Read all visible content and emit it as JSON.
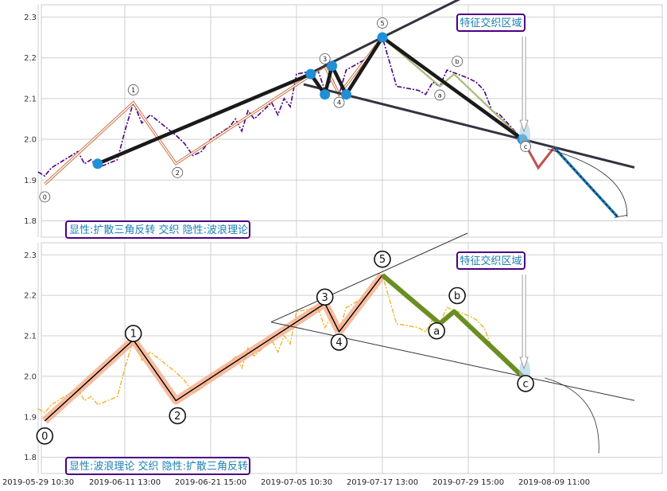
{
  "chart_data": [
    {
      "type": "line",
      "xlim": [
        "2019-05-29 10:30",
        "2019-08-23 11:00"
      ],
      "ylim": [
        1.76,
        2.33
      ],
      "yticks": [
        1.8,
        1.9,
        2.0,
        2.1,
        2.2,
        2.3
      ],
      "grid": true,
      "price_series": {
        "color": "#4b0082",
        "points": [
          [
            "2019-05-29 10:30",
            1.92
          ],
          [
            "2019-05-30 10:30",
            1.91
          ],
          [
            "2019-05-31 10:30",
            1.93
          ],
          [
            "2019-06-03 10:30",
            1.96
          ],
          [
            "2019-06-04 10:30",
            1.97
          ],
          [
            "2019-06-05 10:30",
            1.94
          ],
          [
            "2019-06-06 10:30",
            1.95
          ],
          [
            "2019-06-07 10:30",
            1.93
          ],
          [
            "2019-06-10 10:30",
            1.95
          ],
          [
            "2019-06-11 13:00",
            2.02
          ],
          [
            "2019-06-12 13:00",
            2.09
          ],
          [
            "2019-06-13 13:00",
            2.04
          ],
          [
            "2019-06-14 13:00",
            2.06
          ],
          [
            "2019-06-17 13:00",
            2.01
          ],
          [
            "2019-06-18 13:00",
            1.99
          ],
          [
            "2019-06-19 13:00",
            1.96
          ],
          [
            "2019-06-20 13:00",
            1.97
          ],
          [
            "2019-06-21 15:00",
            2.0
          ],
          [
            "2019-06-24 15:00",
            2.03
          ],
          [
            "2019-06-25 15:00",
            2.05
          ],
          [
            "2019-06-26 15:00",
            2.02
          ],
          [
            "2019-06-27 15:00",
            2.07
          ],
          [
            "2019-06-28 15:00",
            2.05
          ],
          [
            "2019-07-01 10:30",
            2.09
          ],
          [
            "2019-07-02 10:30",
            2.06
          ],
          [
            "2019-07-03 10:30",
            2.1
          ],
          [
            "2019-07-04 10:30",
            2.08
          ],
          [
            "2019-07-05 10:30",
            2.16
          ],
          [
            "2019-07-08 10:30",
            2.17
          ],
          [
            "2019-07-09 10:30",
            2.12
          ],
          [
            "2019-07-10 10:30",
            2.15
          ],
          [
            "2019-07-11 10:30",
            2.11
          ],
          [
            "2019-07-12 10:30",
            2.17
          ],
          [
            "2019-07-15 13:00",
            2.2
          ],
          [
            "2019-07-16 13:00",
            2.23
          ],
          [
            "2019-07-17 13:00",
            2.25
          ],
          [
            "2019-07-18 13:00",
            2.19
          ],
          [
            "2019-07-19 13:00",
            2.13
          ],
          [
            "2019-07-22 15:00",
            2.12
          ],
          [
            "2019-07-23 15:00",
            2.11
          ],
          [
            "2019-07-24 15:00",
            2.14
          ],
          [
            "2019-07-25 15:00",
            2.13
          ],
          [
            "2019-07-26 15:00",
            2.17
          ],
          [
            "2019-07-29 15:00",
            2.15
          ],
          [
            "2019-07-30 15:00",
            2.14
          ],
          [
            "2019-07-31 15:00",
            2.12
          ],
          [
            "2019-08-01 15:00",
            2.07
          ],
          [
            "2019-08-02 15:00",
            2.06
          ],
          [
            "2019-08-05 11:00",
            2.0
          ]
        ]
      },
      "wave_points": [
        {
          "label": "0",
          "x": "2019-05-30 10:30",
          "y": 1.89
        },
        {
          "label": "1",
          "x": "2019-06-12 13:00",
          "y": 2.09
        },
        {
          "label": "2",
          "x": "2019-06-17 13:00",
          "y": 1.94
        },
        {
          "label": "3",
          "x": "2019-07-09 10:30",
          "y": 2.18
        },
        {
          "label": "4",
          "x": "2019-07-11 10:30",
          "y": 2.11
        },
        {
          "label": "5",
          "x": "2019-07-17 13:00",
          "y": 2.25
        },
        {
          "label": "a",
          "x": "2019-07-25 15:00",
          "y": 2.13
        },
        {
          "label": "b",
          "x": "2019-07-27 15:00",
          "y": 2.16
        },
        {
          "label": "c",
          "x": "2019-08-05 11:00",
          "y": 2.0
        }
      ],
      "triangle_pivots": [
        {
          "x": "2019-06-07 10:30",
          "y": 1.94
        },
        {
          "x": "2019-07-07 10:30",
          "y": 2.16
        },
        {
          "x": "2019-07-09 10:30",
          "y": 2.11
        },
        {
          "x": "2019-07-10 10:30",
          "y": 2.18
        },
        {
          "x": "2019-07-12 10:30",
          "y": 2.11
        },
        {
          "x": "2019-07-17 13:00",
          "y": 2.25
        },
        {
          "x": "2019-08-05 11:00",
          "y": 2.0
        }
      ],
      "projection": [
        {
          "x": "2019-08-05 11:00",
          "y": 2.0
        },
        {
          "x": "2019-08-07 11:00",
          "y": 1.93
        },
        {
          "x": "2019-08-09 11:00",
          "y": 1.98
        },
        {
          "x": "2019-08-17 11:00",
          "y": 1.81
        }
      ],
      "callout": "特征交织区域",
      "caption": "显性:扩散三角反转 交织 隐性:波浪理论"
    },
    {
      "type": "line",
      "xlim": [
        "2019-05-29 10:30",
        "2019-08-23 11:00"
      ],
      "ylim": [
        1.76,
        2.33
      ],
      "yticks": [
        1.8,
        1.9,
        2.0,
        2.1,
        2.2,
        2.3
      ],
      "grid": true,
      "price_series": {
        "color": "#f0b429",
        "points": [
          [
            "2019-05-29 10:30",
            1.92
          ],
          [
            "2019-05-30 10:30",
            1.91
          ],
          [
            "2019-05-31 10:30",
            1.93
          ],
          [
            "2019-06-03 10:30",
            1.96
          ],
          [
            "2019-06-04 10:30",
            1.97
          ],
          [
            "2019-06-05 10:30",
            1.94
          ],
          [
            "2019-06-06 10:30",
            1.95
          ],
          [
            "2019-06-07 10:30",
            1.93
          ],
          [
            "2019-06-10 10:30",
            1.95
          ],
          [
            "2019-06-11 13:00",
            2.02
          ],
          [
            "2019-06-12 13:00",
            2.09
          ],
          [
            "2019-06-13 13:00",
            2.04
          ],
          [
            "2019-06-14 13:00",
            2.06
          ],
          [
            "2019-06-17 13:00",
            2.01
          ],
          [
            "2019-06-18 13:00",
            1.99
          ],
          [
            "2019-06-19 13:00",
            1.96
          ],
          [
            "2019-06-20 13:00",
            1.97
          ],
          [
            "2019-06-21 15:00",
            2.0
          ],
          [
            "2019-06-24 15:00",
            2.03
          ],
          [
            "2019-06-25 15:00",
            2.05
          ],
          [
            "2019-06-26 15:00",
            2.02
          ],
          [
            "2019-06-27 15:00",
            2.07
          ],
          [
            "2019-06-28 15:00",
            2.05
          ],
          [
            "2019-07-01 10:30",
            2.09
          ],
          [
            "2019-07-02 10:30",
            2.06
          ],
          [
            "2019-07-03 10:30",
            2.1
          ],
          [
            "2019-07-04 10:30",
            2.08
          ],
          [
            "2019-07-05 10:30",
            2.16
          ],
          [
            "2019-07-08 10:30",
            2.17
          ],
          [
            "2019-07-09 10:30",
            2.12
          ],
          [
            "2019-07-10 10:30",
            2.15
          ],
          [
            "2019-07-11 10:30",
            2.11
          ],
          [
            "2019-07-12 10:30",
            2.17
          ],
          [
            "2019-07-15 13:00",
            2.2
          ],
          [
            "2019-07-16 13:00",
            2.23
          ],
          [
            "2019-07-17 13:00",
            2.25
          ],
          [
            "2019-07-18 13:00",
            2.19
          ],
          [
            "2019-07-19 13:00",
            2.13
          ],
          [
            "2019-07-22 15:00",
            2.12
          ],
          [
            "2019-07-23 15:00",
            2.11
          ],
          [
            "2019-07-24 15:00",
            2.14
          ],
          [
            "2019-07-25 15:00",
            2.13
          ],
          [
            "2019-07-26 15:00",
            2.17
          ],
          [
            "2019-07-29 15:00",
            2.15
          ],
          [
            "2019-07-30 15:00",
            2.14
          ],
          [
            "2019-07-31 15:00",
            2.12
          ],
          [
            "2019-08-01 15:00",
            2.07
          ],
          [
            "2019-08-02 15:00",
            2.06
          ],
          [
            "2019-08-05 11:00",
            2.0
          ]
        ]
      },
      "wave_points": [
        {
          "label": "0",
          "x": "2019-05-30 10:30",
          "y": 1.89
        },
        {
          "label": "1",
          "x": "2019-06-12 13:00",
          "y": 2.09
        },
        {
          "label": "2",
          "x": "2019-06-17 13:00",
          "y": 1.94
        },
        {
          "label": "3",
          "x": "2019-07-09 10:30",
          "y": 2.18
        },
        {
          "label": "4",
          "x": "2019-07-11 10:30",
          "y": 2.11
        },
        {
          "label": "5",
          "x": "2019-07-17 13:00",
          "y": 2.25
        },
        {
          "label": "a",
          "x": "2019-07-25 15:00",
          "y": 2.13
        },
        {
          "label": "b",
          "x": "2019-07-27 15:00",
          "y": 2.16
        },
        {
          "label": "c",
          "x": "2019-08-05 11:00",
          "y": 2.0
        }
      ],
      "callout": "特征交织区域",
      "caption": "显性:波浪理论 交织 隐性:扩散三角反转"
    }
  ],
  "x_tick_labels": [
    "2019-05-29 10:30",
    "2019-06-11 13:00",
    "2019-06-21 15:00",
    "2019-07-05 10:30",
    "2019-07-17 13:00",
    "2019-07-29 15:00",
    "2019-08-09 11:00"
  ],
  "colors": {
    "grid": "#cfcfcf",
    "wave_band_top": "#c46a3a",
    "wave_band_bottom": "#f4a582",
    "triangle_line": "#33333f",
    "pattern_line": "#1a1a1a",
    "pivot_dot": "#1f8fd6",
    "correction_green": "#6b8e23",
    "projection_red": "#c0504d",
    "projection_blue": "#1f77b4",
    "caption_border": "#4b0082",
    "caption_text": "#1a7fb5"
  }
}
